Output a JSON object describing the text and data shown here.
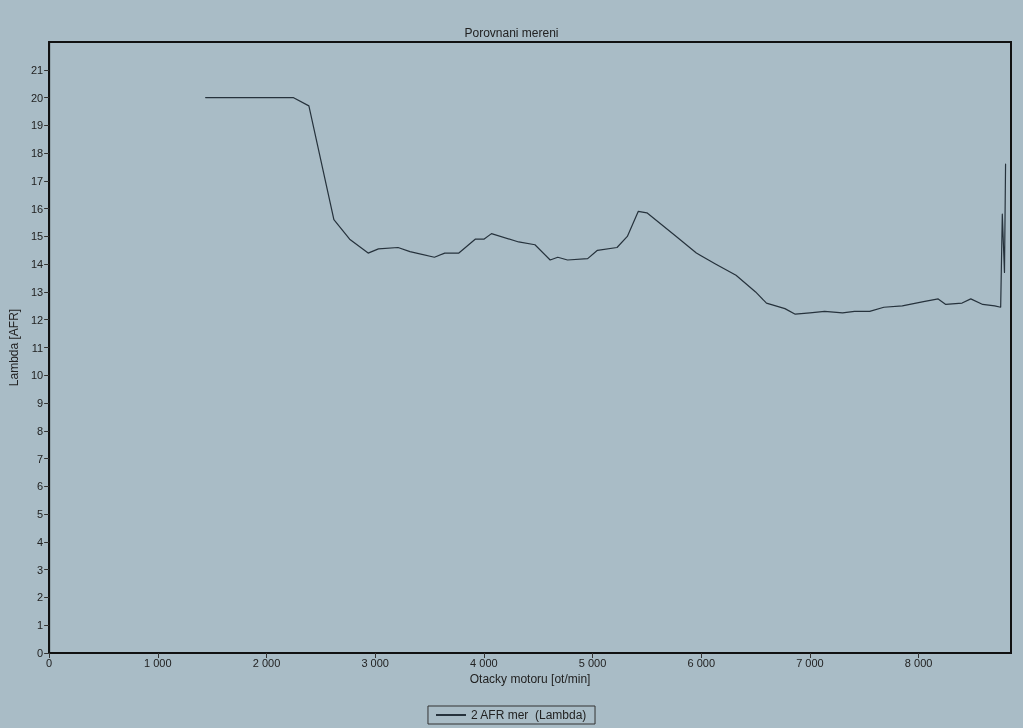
{
  "chart_data": {
    "type": "line",
    "title": "Porovnani mereni",
    "xlabel": "Otacky motoru [ot/min]",
    "ylabel": "Lambda [AFR]",
    "xlim": [
      0,
      8850
    ],
    "xticks": [
      0,
      {
        "value": 1000,
        "label": "1 000"
      },
      {
        "value": 2000,
        "label": "2 000"
      },
      {
        "value": 3000,
        "label": "3 000"
      },
      {
        "value": 4000,
        "label": "4 000"
      },
      {
        "value": 5000,
        "label": "5 000"
      },
      {
        "value": 6000,
        "label": "6 000"
      },
      {
        "value": 7000,
        "label": "7 000"
      },
      {
        "value": 8000,
        "label": "8 000"
      }
    ],
    "ylim": [
      0,
      22
    ],
    "yticks": [
      0,
      1,
      2,
      3,
      4,
      5,
      6,
      7,
      8,
      9,
      10,
      11,
      12,
      13,
      14,
      15,
      16,
      17,
      18,
      19,
      20,
      21
    ],
    "legend": "bottom",
    "grid": false,
    "marker": "none",
    "line_style": "solid",
    "series": [
      {
        "name": "2 AFR mer  (Lambda)",
        "color": "#26323c",
        "x": [
          1440,
          2245,
          2390,
          2620,
          2765,
          2935,
          3030,
          3210,
          3320,
          3545,
          3640,
          3770,
          3920,
          4000,
          4070,
          4320,
          4470,
          4610,
          4680,
          4770,
          4955,
          5045,
          5225,
          5320,
          5420,
          5500,
          5770,
          5955,
          6135,
          6320,
          6500,
          6600,
          6770,
          6865,
          7000,
          7135,
          7300,
          7410,
          7550,
          7680,
          7850,
          8045,
          8180,
          8250,
          8400,
          8480,
          8590,
          8700,
          8755,
          8770,
          8790,
          8800
        ],
        "values": [
          20,
          20,
          19.7,
          15.6,
          14.9,
          14.4,
          14.55,
          14.6,
          14.45,
          14.25,
          14.4,
          14.4,
          14.9,
          14.9,
          15.1,
          14.8,
          14.7,
          14.15,
          14.25,
          14.15,
          14.2,
          14.5,
          14.6,
          15.0,
          15.9,
          15.85,
          15.0,
          14.4,
          14.0,
          13.6,
          13.0,
          12.6,
          12.4,
          12.2,
          12.25,
          12.3,
          12.25,
          12.3,
          12.3,
          12.45,
          12.5,
          12.65,
          12.75,
          12.55,
          12.6,
          12.75,
          12.55,
          12.5,
          12.45,
          15.8,
          13.7,
          17.6
        ]
      }
    ]
  }
}
